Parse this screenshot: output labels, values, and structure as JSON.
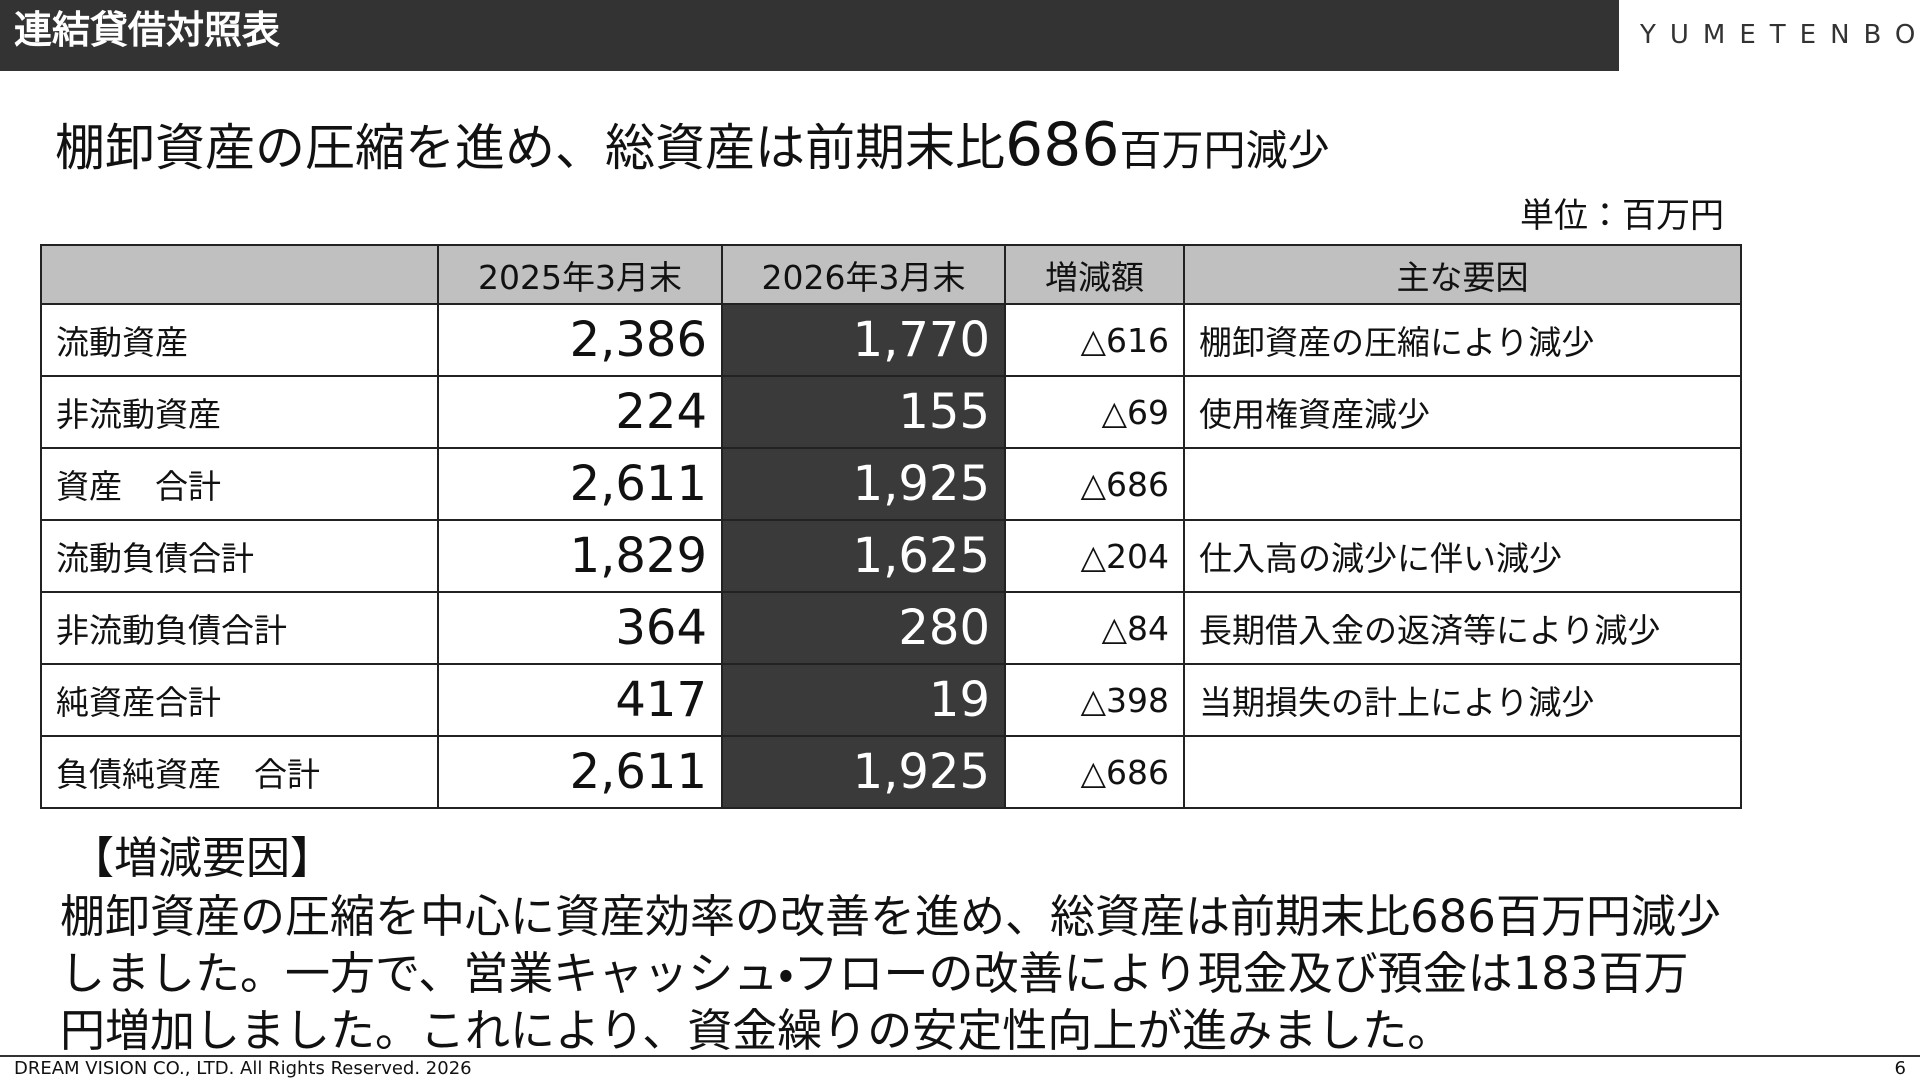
{
  "header": {
    "title": "連結貸借対照表",
    "logo": "YUMETENBO"
  },
  "headline": {
    "parts": [
      "棚卸資産の圧縮を進め、総資産は前期末比",
      "686",
      "百万円減少"
    ]
  },
  "unit": "単位：百万円",
  "table": {
    "columns": [
      null,
      "2025年3月末",
      "2026年3月末",
      "増減額",
      "主な要因"
    ],
    "rows": [
      [
        "流動資産",
        "2,386",
        "1,770",
        "△616",
        "棚卸資産の圧縮により減少"
      ],
      [
        "非流動資産",
        "224",
        "155",
        "△69",
        "使用権資産減少"
      ],
      [
        "資産　合計",
        "2,611",
        "1,925",
        "△686",
        null
      ],
      [
        "流動負債合計",
        "1,829",
        "1,625",
        "△204",
        "仕入高の減少に伴い減少"
      ],
      [
        "非流動負債合計",
        "364",
        "280",
        "△84",
        "長期借入金の返済等により減少"
      ],
      [
        "純資産合計",
        "417",
        "19",
        "△398",
        "当期損失の計上により減少"
      ],
      [
        "負債純資産　合計",
        "2,611",
        "1,925",
        "△686",
        null
      ]
    ]
  },
  "notes": {
    "heading": "【増減要因】",
    "lines": [
      "棚卸資産の圧縮を中心に資産効率の改善を進め、総資産は前期末比686百万円減少",
      "しました。一方で、営業キャッシュ・フローの改善により現金及び預金は183百万",
      "円増加しました。これにより、資金繰りの安定性向上が進みました。"
    ]
  },
  "footer": {
    "copyright": "DREAM VISION CO., LTD. All Rights Reserved. 2026",
    "page": "6"
  }
}
